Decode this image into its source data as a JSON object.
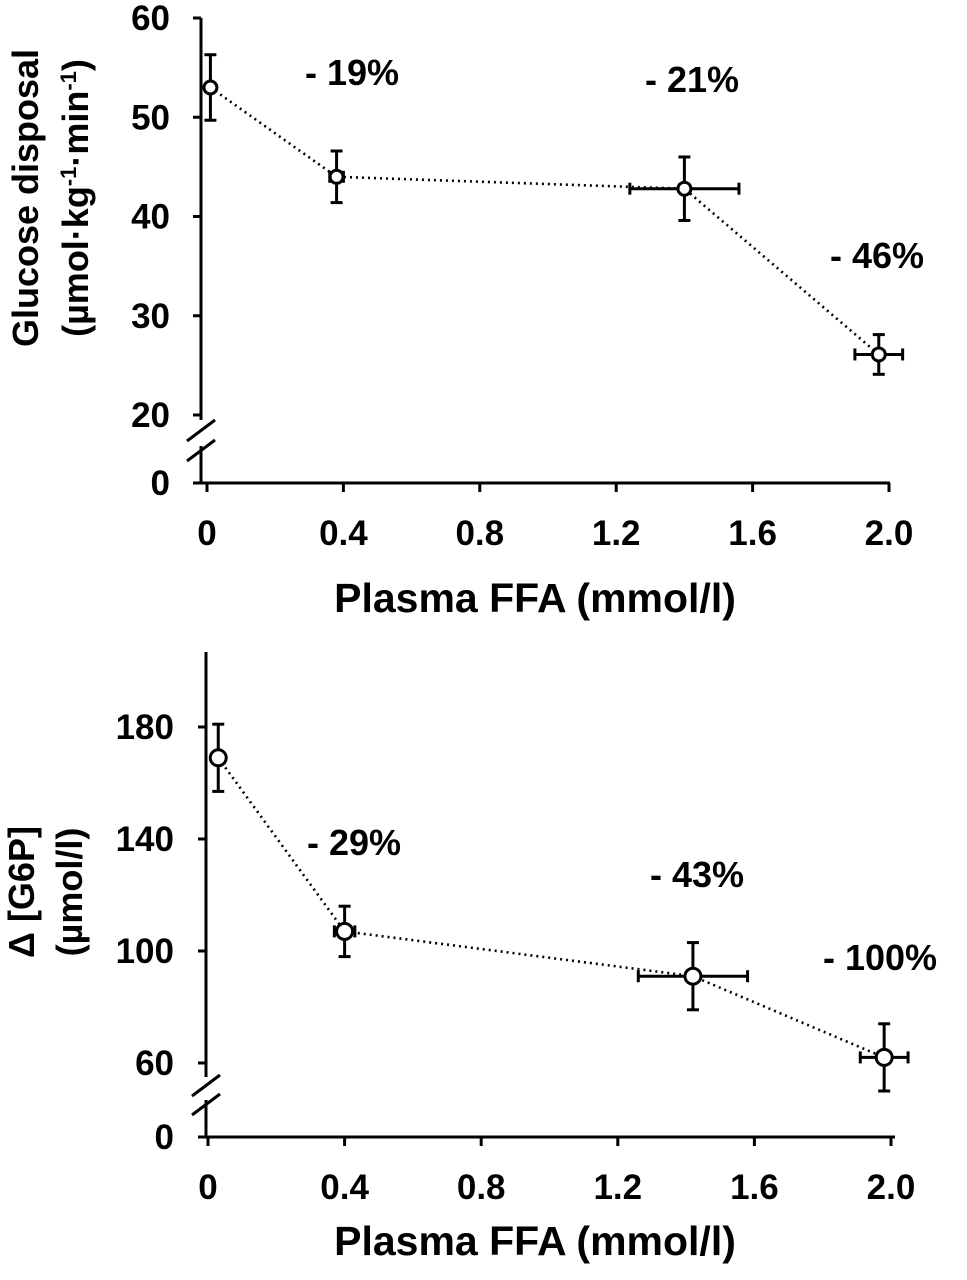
{
  "chart_data": [
    {
      "type": "scatter",
      "id": "top",
      "ylabel_line1": "Glucose disposal",
      "ylabel_line2": "(µmol·kg",
      "ylabel_sup1": "-1",
      "ylabel_mid": "·min",
      "ylabel_sup2": "-1",
      "ylabel_end": ")",
      "xlabel": "Plasma FFA (mmol/l)",
      "xlim": [
        0,
        2.0
      ],
      "ylim": [
        20,
        60
      ],
      "xticks": [
        0,
        0.4,
        0.8,
        1.2,
        1.6,
        2.0
      ],
      "xtick_labels": [
        "0",
        "0.4",
        "0.8",
        "1.2",
        "1.6",
        "2.0"
      ],
      "yticks": [
        20,
        30,
        40,
        50,
        60
      ],
      "ytick_labels": [
        "20",
        "30",
        "40",
        "50",
        "60"
      ],
      "zero_label": "0",
      "points": [
        {
          "x": 0.01,
          "y": 53.0,
          "xerr": 0.0,
          "yerr": 3.3
        },
        {
          "x": 0.38,
          "y": 44.0,
          "xerr": 0.02,
          "yerr": 2.6
        },
        {
          "x": 1.4,
          "y": 42.8,
          "xerr": 0.16,
          "yerr": 3.2
        },
        {
          "x": 1.97,
          "y": 26.1,
          "xerr": 0.07,
          "yerr": 2.0
        }
      ],
      "annotations": [
        "- 19%",
        "- 21%",
        "- 46%"
      ]
    },
    {
      "type": "scatter",
      "id": "bottom",
      "ylabel_line1": "Δ [G6P]",
      "ylabel_line2": "(µmol/l)",
      "xlabel": "Plasma FFA (mmol/l)",
      "xlim": [
        0,
        2.0
      ],
      "ylim": [
        50,
        200
      ],
      "xticks": [
        0,
        0.4,
        0.8,
        1.2,
        1.6,
        2.0
      ],
      "xtick_labels": [
        "0",
        "0.4",
        "0.8",
        "1.2",
        "1.6",
        "2.0"
      ],
      "yticks": [
        60,
        100,
        140,
        180
      ],
      "ytick_labels": [
        "60",
        "100",
        "140",
        "180"
      ],
      "zero_label": "0",
      "points": [
        {
          "x": 0.03,
          "y": 169,
          "xerr": 0.0,
          "yerr": 12
        },
        {
          "x": 0.4,
          "y": 107,
          "xerr": 0.03,
          "yerr": 9
        },
        {
          "x": 1.42,
          "y": 91,
          "xerr": 0.16,
          "yerr": 12
        },
        {
          "x": 1.98,
          "y": 62,
          "xerr": 0.07,
          "yerr": 12
        }
      ],
      "annotations": [
        "- 29%",
        "- 43%",
        "- 100%"
      ]
    }
  ]
}
